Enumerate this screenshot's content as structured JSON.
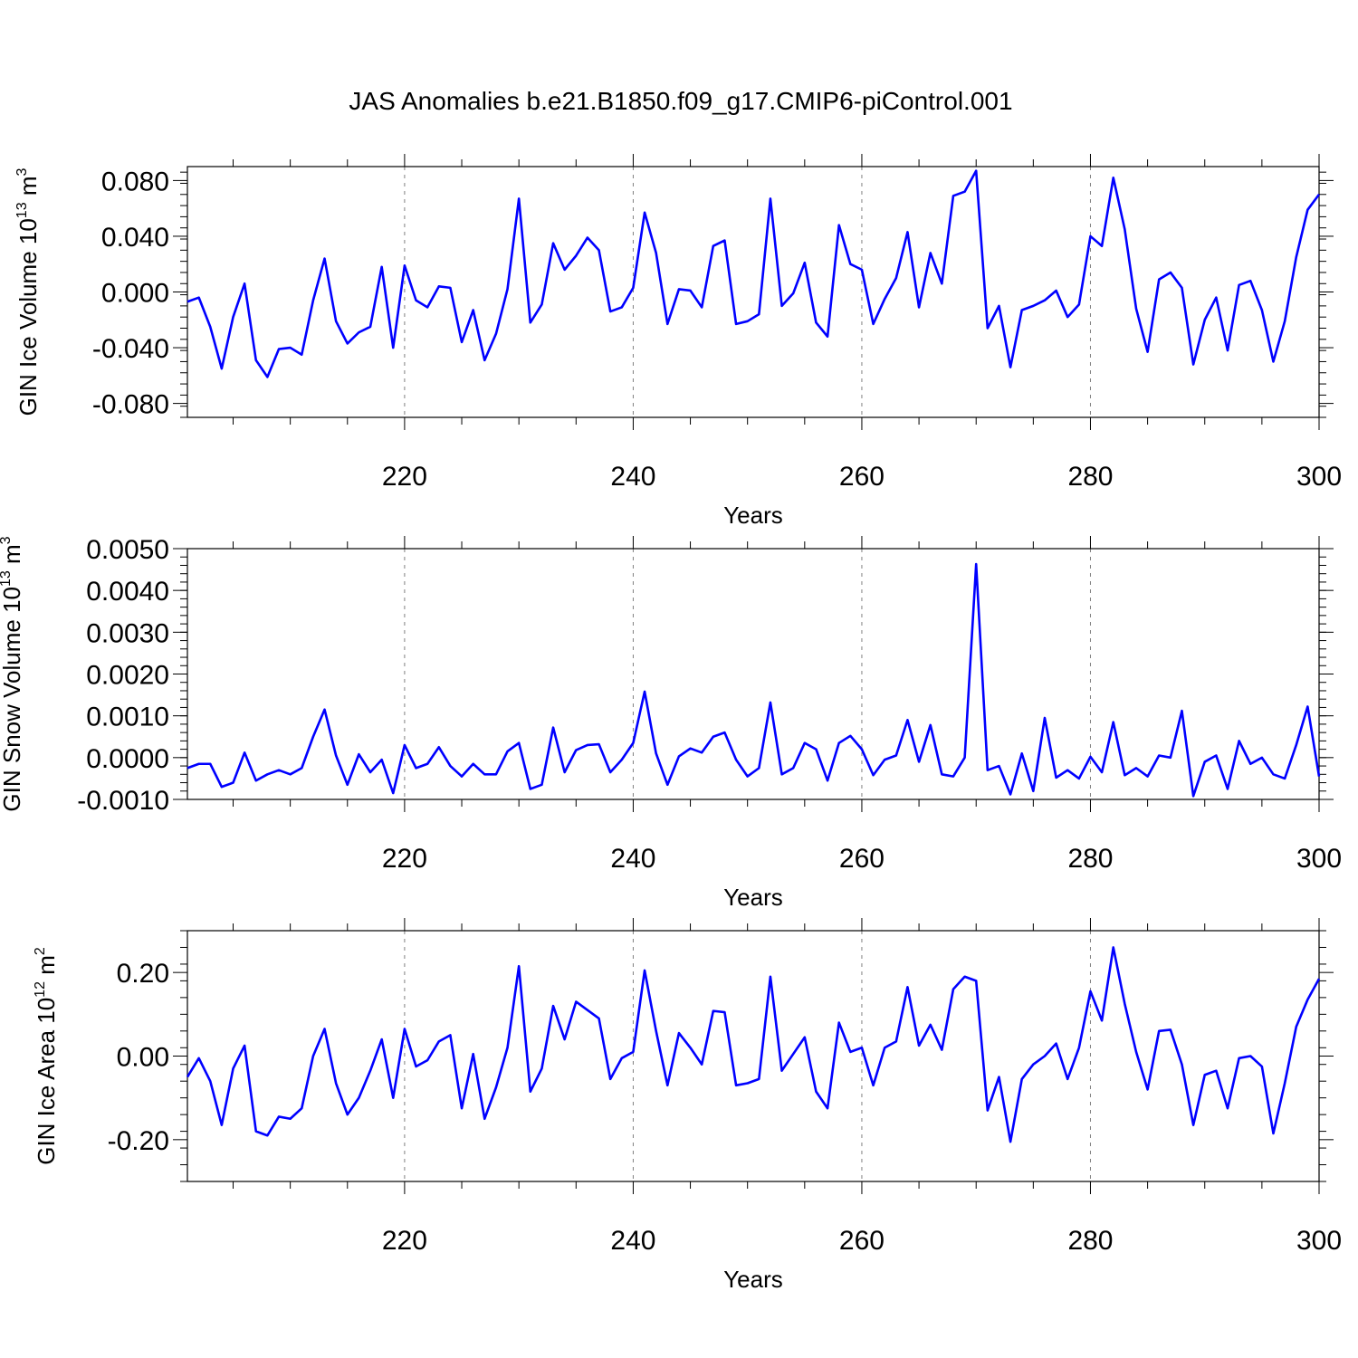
{
  "title": "JAS Anomalies b.e21.B1850.f09_g17.CMIP6-piControl.001",
  "colors": {
    "line": "#0000ff",
    "axis": "#000000",
    "grid": "#808080"
  },
  "chart_data": [
    {
      "type": "line",
      "ylabel": {
        "text": "GIN Ice Volume 10",
        "exp": "13",
        "unit": " m",
        "unit_exp": "3"
      },
      "xlabel": "Years",
      "xlim": [
        201,
        300
      ],
      "ylim": [
        -0.09,
        0.09
      ],
      "x_ticks": [
        "220",
        "240",
        "260",
        "280",
        "300"
      ],
      "y_ticks": [
        "0.080",
        "0.040",
        "0.000",
        "-0.040",
        "-0.080"
      ],
      "grid_x": [
        220,
        240,
        260,
        280
      ],
      "x_start": 201,
      "values": [
        -0.007,
        -0.004,
        -0.025,
        -0.055,
        -0.018,
        0.006,
        -0.049,
        -0.061,
        -0.041,
        -0.04,
        -0.045,
        -0.006,
        0.024,
        -0.021,
        -0.037,
        -0.029,
        -0.025,
        0.018,
        -0.04,
        0.019,
        -0.006,
        -0.011,
        0.004,
        0.003,
        -0.036,
        -0.013,
        -0.049,
        -0.03,
        0.002,
        0.067,
        -0.022,
        -0.009,
        0.035,
        0.016,
        0.026,
        0.039,
        0.03,
        -0.014,
        -0.011,
        0.003,
        0.057,
        0.028,
        -0.023,
        0.002,
        0.001,
        -0.011,
        0.033,
        0.037,
        -0.023,
        -0.021,
        -0.016,
        0.067,
        -0.01,
        -0.001,
        0.021,
        -0.022,
        -0.032,
        0.048,
        0.02,
        0.016,
        -0.023,
        -0.005,
        0.01,
        0.043,
        -0.011,
        0.028,
        0.006,
        0.069,
        0.072,
        0.087,
        -0.026,
        -0.01,
        -0.054,
        -0.013,
        -0.01,
        -0.006,
        0.001,
        -0.018,
        -0.009,
        0.04,
        0.033,
        0.082,
        0.045,
        -0.012,
        -0.043,
        0.009,
        0.014,
        0.003,
        -0.052,
        -0.02,
        -0.004,
        -0.042,
        0.005,
        0.008,
        -0.013,
        -0.05,
        -0.021,
        0.025,
        0.059,
        0.07
      ]
    },
    {
      "type": "line",
      "ylabel": {
        "text": "GIN Snow Volume 10",
        "exp": "13",
        "unit": " m",
        "unit_exp": "3"
      },
      "xlabel": "Years",
      "xlim": [
        201,
        300
      ],
      "ylim": [
        -0.001,
        0.005
      ],
      "x_ticks": [
        "220",
        "240",
        "260",
        "280",
        "300"
      ],
      "y_ticks": [
        "0.0050",
        "0.0040",
        "0.0030",
        "0.0020",
        "0.0010",
        "0.0000",
        "-0.0010"
      ],
      "grid_x": [
        220,
        240,
        260,
        280
      ],
      "x_start": 201,
      "values": [
        -0.00025,
        -0.00015,
        -0.00015,
        -0.0007,
        -0.0006,
        0.00012,
        -0.00055,
        -0.0004,
        -0.0003,
        -0.0004,
        -0.00025,
        0.0005,
        0.00115,
        5e-05,
        -0.00065,
        8e-05,
        -0.00035,
        -5e-05,
        -0.00085,
        0.0003,
        -0.00025,
        -0.00015,
        0.00025,
        -0.0002,
        -0.00045,
        -0.00015,
        -0.0004,
        -0.0004,
        0.00015,
        0.00035,
        -0.00075,
        -0.00065,
        0.00072,
        -0.00035,
        0.00018,
        0.0003,
        0.00032,
        -0.00035,
        -5e-05,
        0.00035,
        0.00158,
        0.0001,
        -0.00065,
        3e-05,
        0.00022,
        0.00012,
        0.0005,
        0.0006,
        -5e-05,
        -0.00045,
        -0.00025,
        0.00132,
        -0.0004,
        -0.00025,
        0.00035,
        0.0002,
        -0.00055,
        0.00035,
        0.00052,
        0.0002,
        -0.00042,
        -5e-05,
        5e-05,
        0.0009,
        -0.0001,
        0.00078,
        -0.0004,
        -0.00045,
        0.0,
        0.00463,
        -0.0003,
        -0.0002,
        -0.00088,
        0.0001,
        -0.0008,
        0.00095,
        -0.00048,
        -0.0003,
        -0.0005,
        2e-05,
        -0.00035,
        0.00085,
        -0.00042,
        -0.00025,
        -0.00045,
        5e-05,
        0.0,
        0.00112,
        -0.00092,
        -0.0001,
        5e-05,
        -0.00075,
        0.0004,
        -0.00015,
        0.0,
        -0.0004,
        -0.0005,
        0.0003,
        0.00122,
        -0.00045
      ]
    },
    {
      "type": "line",
      "ylabel": {
        "text": "GIN Ice Area 10",
        "exp": "12",
        "unit": " m",
        "unit_exp": "2"
      },
      "xlabel": "Years",
      "xlim": [
        201,
        300
      ],
      "ylim": [
        -0.3,
        0.3
      ],
      "x_ticks": [
        "220",
        "240",
        "260",
        "280",
        "300"
      ],
      "y_ticks": [
        "0.20",
        "0.00",
        "-0.20"
      ],
      "grid_x": [
        220,
        240,
        260,
        280
      ],
      "x_start": 201,
      "values": [
        -0.05,
        -0.005,
        -0.06,
        -0.165,
        -0.03,
        0.025,
        -0.18,
        -0.19,
        -0.145,
        -0.15,
        -0.125,
        0.0,
        0.065,
        -0.065,
        -0.14,
        -0.1,
        -0.035,
        0.04,
        -0.1,
        0.065,
        -0.025,
        -0.01,
        0.035,
        0.05,
        -0.125,
        0.005,
        -0.15,
        -0.075,
        0.02,
        0.215,
        -0.085,
        -0.03,
        0.12,
        0.04,
        0.13,
        0.11,
        0.09,
        -0.055,
        -0.005,
        0.01,
        0.205,
        0.06,
        -0.07,
        0.055,
        0.02,
        -0.02,
        0.108,
        0.105,
        -0.07,
        -0.065,
        -0.055,
        0.19,
        -0.035,
        0.005,
        0.045,
        -0.085,
        -0.125,
        0.08,
        0.01,
        0.02,
        -0.07,
        0.02,
        0.035,
        0.165,
        0.025,
        0.075,
        0.015,
        0.16,
        0.19,
        0.18,
        -0.13,
        -0.05,
        -0.205,
        -0.055,
        -0.02,
        0.0,
        0.03,
        -0.055,
        0.02,
        0.155,
        0.085,
        0.26,
        0.125,
        0.01,
        -0.08,
        0.06,
        0.063,
        -0.02,
        -0.165,
        -0.045,
        -0.035,
        -0.125,
        -0.005,
        0.0,
        -0.025,
        -0.185,
        -0.065,
        0.07,
        0.135,
        0.185
      ]
    }
  ]
}
